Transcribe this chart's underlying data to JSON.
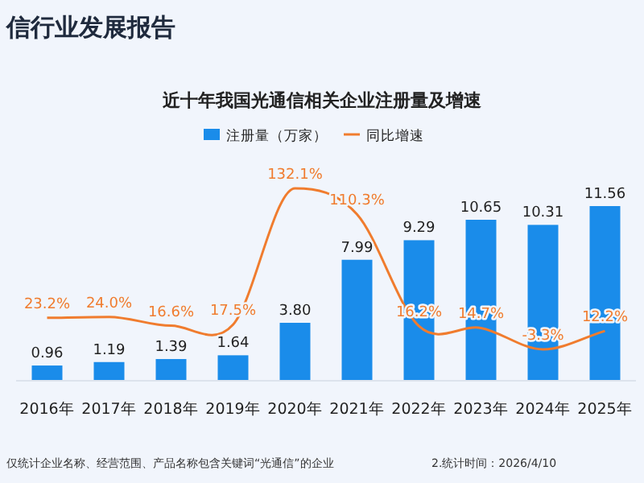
{
  "chart_data": {
    "type": "bar",
    "title": "近十年我国光通信相关企业注册量及增速",
    "annotations": [
      "信行业发展报告",
      "仅统计企业名称、经营范围、产品名称包含关键词“光通信”的企业",
      "2.统计时间：2026/4/10"
    ],
    "categories": [
      "2016年",
      "2017年",
      "2018年",
      "2019年",
      "2020年",
      "2021年",
      "2022年",
      "2023年",
      "2024年",
      "2025年"
    ],
    "legend": "top",
    "series": [
      {
        "name": "注册量（万家）",
        "color": "#1a8cea",
        "values": [
          0.96,
          1.19,
          1.39,
          1.64,
          3.8,
          7.99,
          9.29,
          10.65,
          10.31,
          11.56
        ],
        "value_labels": [
          "0.96",
          "1.19",
          "1.39",
          "1.64",
          "3.80",
          "7.99",
          "9.29",
          "10.65",
          "10.31",
          "11.56"
        ]
      },
      {
        "name": "同比增速",
        "type": "line",
        "axis": "y2",
        "color": "#f07c2e",
        "values": [
          23.2,
          24.0,
          16.6,
          17.5,
          132.1,
          110.3,
          16.2,
          14.7,
          -3.3,
          12.2
        ],
        "value_labels": [
          "23.2%",
          "24.0%",
          "16.6%",
          "17.5%",
          "132.1%",
          "110.3%",
          "16.2%",
          "14.7%",
          "-3.3%",
          "12.2%"
        ]
      }
    ]
  }
}
